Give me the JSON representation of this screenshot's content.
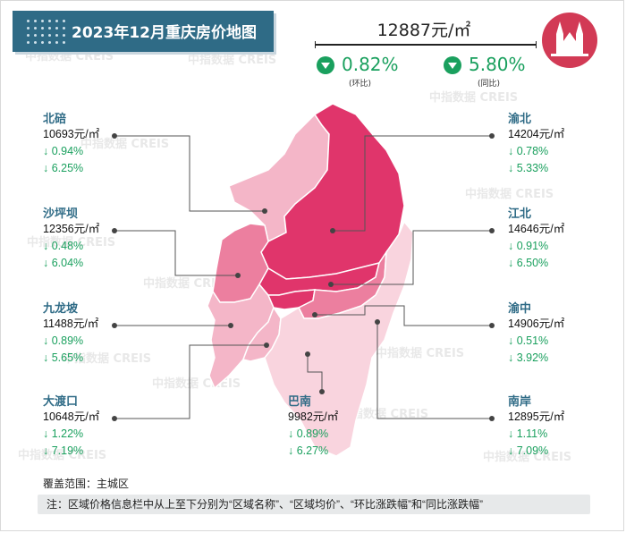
{
  "title": "2023年12月重庆房价地图",
  "overall": {
    "price": "12887元/㎡",
    "mom_value": "0.82%",
    "mom_label": "(环比)",
    "yoy_value": "5.80%",
    "yoy_label": "(同比)"
  },
  "colors": {
    "header": "#2f6b86",
    "down": "#1aa05e",
    "map_dark": "#e0356b",
    "map_mid": "#ec7f9f",
    "map_light": "#f4b6c8",
    "map_pale": "#f9d4de"
  },
  "districts": [
    {
      "name": "北碚",
      "price": "10693元/㎡",
      "mom": "↓ 0.94%",
      "yoy": "↓ 6.25%"
    },
    {
      "name": "沙坪坝",
      "price": "12356元/㎡",
      "mom": "↓ 0.48%",
      "yoy": "↓ 6.04%"
    },
    {
      "name": "九龙坡",
      "price": "11488元/㎡",
      "mom": "↓ 0.89%",
      "yoy": "↓ 5.65%"
    },
    {
      "name": "大渡口",
      "price": "10648元/㎡",
      "mom": "↓ 1.22%",
      "yoy": "↓ 7.19%"
    },
    {
      "name": "巴南",
      "price": "9982元/㎡",
      "mom": "↓ 0.89%",
      "yoy": "↓ 6.27%"
    },
    {
      "name": "渝北",
      "price": "14204元/㎡",
      "mom": "↓ 0.78%",
      "yoy": "↓ 5.33%"
    },
    {
      "name": "江北",
      "price": "14646元/㎡",
      "mom": "↓ 0.91%",
      "yoy": "↓ 6.50%"
    },
    {
      "name": "渝中",
      "price": "14906元/㎡",
      "mom": "↓ 0.51%",
      "yoy": "↓ 3.92%"
    },
    {
      "name": "南岸",
      "price": "12895元/㎡",
      "mom": "↓ 1.11%",
      "yoy": "↓ 7.09%"
    }
  ],
  "scope": "覆盖范围：主城区",
  "note": "注：区域价格信息栏中从上至下分别为“区域名称”、“区域均价”、“环比涨跌幅”和“同比涨跌幅”",
  "watermark": "中指数据 CREIS"
}
